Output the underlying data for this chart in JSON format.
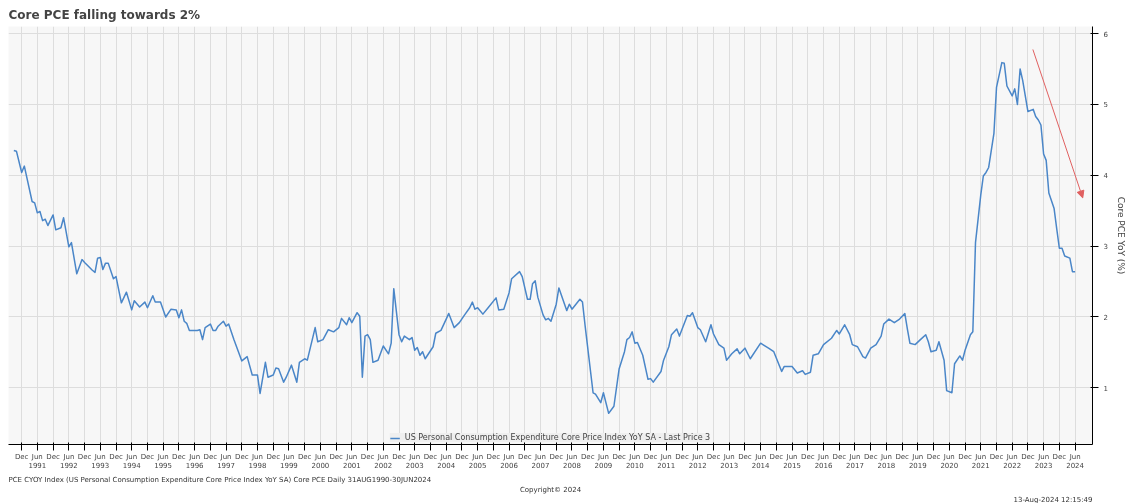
{
  "chart_data": {
    "type": "line",
    "title": "Core PCE falling towards 2%",
    "ylabel": "Core PCE YoY (%)",
    "xlim": [
      "1990-07-01",
      "2024-12-20"
    ],
    "ylim": [
      0.2,
      6.1
    ],
    "yticks": [
      1,
      2,
      3,
      4,
      5,
      6
    ],
    "xticks": [
      {
        "value": "1990-12",
        "label": "Dec"
      },
      {
        "value": "1991-06",
        "label": "Jun\n1991"
      },
      {
        "value": "1991-12",
        "label": "Dec"
      },
      {
        "value": "1992-06",
        "label": "Jun\n1992"
      },
      {
        "value": "1992-12",
        "label": "Dec"
      },
      {
        "value": "1993-06",
        "label": "Jun\n1993"
      },
      {
        "value": "1993-12",
        "label": "Dec"
      },
      {
        "value": "1994-06",
        "label": "Jun\n1994"
      },
      {
        "value": "1994-12",
        "label": "Dec"
      },
      {
        "value": "1995-06",
        "label": "Jun\n1995"
      },
      {
        "value": "1995-12",
        "label": "Dec"
      },
      {
        "value": "1996-06",
        "label": "Jun\n1996"
      },
      {
        "value": "1996-12",
        "label": "Dec"
      },
      {
        "value": "1997-06",
        "label": "Jun\n1997"
      },
      {
        "value": "1997-12",
        "label": "Dec"
      },
      {
        "value": "1998-06",
        "label": "Jun\n1998"
      },
      {
        "value": "1998-12",
        "label": "Dec"
      },
      {
        "value": "1999-06",
        "label": "Jun\n1999"
      },
      {
        "value": "1999-12",
        "label": "Dec"
      },
      {
        "value": "2000-06",
        "label": "Jun\n2000"
      },
      {
        "value": "2000-12",
        "label": "Dec"
      },
      {
        "value": "2001-06",
        "label": "Jun\n2001"
      },
      {
        "value": "2001-12",
        "label": "Dec"
      },
      {
        "value": "2002-06",
        "label": "Jun\n2002"
      },
      {
        "value": "2002-12",
        "label": "Dec"
      },
      {
        "value": "2003-06",
        "label": "Jun\n2003"
      },
      {
        "value": "2003-12",
        "label": "Dec"
      },
      {
        "value": "2004-06",
        "label": "Jun\n2004"
      },
      {
        "value": "2004-12",
        "label": "Dec"
      },
      {
        "value": "2005-06",
        "label": "Jun\n2005"
      },
      {
        "value": "2005-12",
        "label": "Dec"
      },
      {
        "value": "2006-06",
        "label": "Jun\n2006"
      },
      {
        "value": "2006-12",
        "label": "Dec"
      },
      {
        "value": "2007-06",
        "label": "Jun\n2007"
      },
      {
        "value": "2007-12",
        "label": "Dec"
      },
      {
        "value": "2008-06",
        "label": "Jun\n2008"
      },
      {
        "value": "2008-12",
        "label": "Dec"
      },
      {
        "value": "2009-06",
        "label": "Jun\n2009"
      },
      {
        "value": "2009-12",
        "label": "Dec"
      },
      {
        "value": "2010-06",
        "label": "Jun\n2010"
      },
      {
        "value": "2010-12",
        "label": "Dec"
      },
      {
        "value": "2011-06",
        "label": "Jun\n2011"
      },
      {
        "value": "2011-12",
        "label": "Dec"
      },
      {
        "value": "2012-06",
        "label": "Jun\n2012"
      },
      {
        "value": "2012-12",
        "label": "Dec"
      },
      {
        "value": "2013-06",
        "label": "Jun\n2013"
      },
      {
        "value": "2013-12",
        "label": "Dec"
      },
      {
        "value": "2014-06",
        "label": "Jun\n2014"
      },
      {
        "value": "2014-12",
        "label": "Dec"
      },
      {
        "value": "2015-06",
        "label": "Jun\n2015"
      },
      {
        "value": "2015-12",
        "label": "Dec"
      },
      {
        "value": "2016-06",
        "label": "Jun\n2016"
      },
      {
        "value": "2016-12",
        "label": "Dec"
      },
      {
        "value": "2017-06",
        "label": "Jun\n2017"
      },
      {
        "value": "2017-12",
        "label": "Dec"
      },
      {
        "value": "2018-06",
        "label": "Jun\n2018"
      },
      {
        "value": "2018-12",
        "label": "Dec"
      },
      {
        "value": "2019-06",
        "label": "Jun\n2019"
      },
      {
        "value": "2019-12",
        "label": "Dec"
      },
      {
        "value": "2020-06",
        "label": "Jun\n2020"
      },
      {
        "value": "2020-12",
        "label": "Dec"
      },
      {
        "value": "2021-06",
        "label": "Jun\n2021"
      },
      {
        "value": "2021-12",
        "label": "Dec"
      },
      {
        "value": "2022-06",
        "label": "Jun\n2022"
      },
      {
        "value": "2022-12",
        "label": "Dec"
      },
      {
        "value": "2023-06",
        "label": "Jun\n2023"
      },
      {
        "value": "2023-12",
        "label": "Dec"
      },
      {
        "value": "2024-06",
        "label": "Jun\n2024"
      }
    ],
    "grid": true,
    "legend": "bottom",
    "marker": "none",
    "line_style": "solid",
    "annotations": [
      "PCE CYOY Index (US Personal Consumption Expenditure Core Price Index YoY SA) Core PCE  Daily 31AUG1990-30JUN2024",
      "Copyright© 2024",
      "13-Aug-2024 12:15:49"
    ],
    "series": [
      {
        "name": "US Personal Consumption Expenditure Core Price Index YoY SA - Last Price 3",
        "color": "#4a86c8",
        "x": [
          "1990-09",
          "1990-10",
          "1990-12",
          "1991-01",
          "1991-04",
          "1991-05",
          "1991-06",
          "1991-07",
          "1991-08",
          "1991-09",
          "1991-10",
          "1991-12",
          "1992-01",
          "1992-03",
          "1992-04",
          "1992-06",
          "1992-07",
          "1992-09",
          "1992-11",
          "1992-12",
          "1993-03",
          "1993-04",
          "1993-05",
          "1993-06",
          "1993-07",
          "1993-08",
          "1993-09",
          "1993-11",
          "1993-12",
          "1994-02",
          "1994-04",
          "1994-06",
          "1994-07",
          "1994-09",
          "1994-11",
          "1994-12",
          "1995-02",
          "1995-03",
          "1995-05",
          "1995-07",
          "1995-09",
          "1995-11",
          "1995-12",
          "1996-01",
          "1996-02",
          "1996-03",
          "1996-04",
          "1996-07",
          "1996-08",
          "1996-09",
          "1996-10",
          "1996-12",
          "1997-01",
          "1997-02",
          "1997-03",
          "1997-05",
          "1997-06",
          "1997-07",
          "1997-09",
          "1997-12",
          "1998-02",
          "1998-04",
          "1998-06",
          "1998-07",
          "1998-09",
          "1998-10",
          "1998-12",
          "1999-01",
          "1999-02",
          "1999-04",
          "1999-05",
          "1999-07",
          "1999-09",
          "1999-10",
          "1999-12",
          "2000-01",
          "2000-04",
          "2000-05",
          "2000-07",
          "2000-09",
          "2000-11",
          "2001-01",
          "2001-02",
          "2001-04",
          "2001-05",
          "2001-06",
          "2001-08",
          "2001-09",
          "2001-10",
          "2001-11",
          "2001-12",
          "2002-01",
          "2002-02",
          "2002-04",
          "2002-06",
          "2002-08",
          "2002-09",
          "2002-10",
          "2002-12",
          "2003-01",
          "2003-02",
          "2003-04",
          "2003-05",
          "2003-06",
          "2003-07",
          "2003-08",
          "2003-09",
          "2003-10",
          "2004-01",
          "2004-02",
          "2004-04",
          "2004-06",
          "2004-07",
          "2004-09",
          "2004-11",
          "2005-01",
          "2005-03",
          "2005-04",
          "2005-05",
          "2005-06",
          "2005-08",
          "2005-10",
          "2006-01",
          "2006-02",
          "2006-04",
          "2006-06",
          "2006-07",
          "2006-10",
          "2006-11",
          "2007-01",
          "2007-02",
          "2007-03",
          "2007-04",
          "2007-05",
          "2007-07",
          "2007-08",
          "2007-09",
          "2007-10",
          "2007-12",
          "2008-01",
          "2008-04",
          "2008-05",
          "2008-06",
          "2008-09",
          "2008-10",
          "2008-11",
          "2009-02",
          "2009-03",
          "2009-05",
          "2009-06",
          "2009-08",
          "2009-10",
          "2009-12",
          "2010-02",
          "2010-03",
          "2010-04",
          "2010-05",
          "2010-06",
          "2010-07",
          "2010-09",
          "2010-11",
          "2010-12",
          "2011-01",
          "2011-04",
          "2011-05",
          "2011-07",
          "2011-08",
          "2011-10",
          "2011-11",
          "2012-02",
          "2012-03",
          "2012-04",
          "2012-06",
          "2012-07",
          "2012-09",
          "2012-11",
          "2012-12",
          "2013-02",
          "2013-04",
          "2013-05",
          "2013-07",
          "2013-09",
          "2013-10",
          "2013-12",
          "2014-02",
          "2014-06",
          "2014-09",
          "2014-11",
          "2015-02",
          "2015-03",
          "2015-06",
          "2015-08",
          "2015-10",
          "2015-11",
          "2016-01",
          "2016-02",
          "2016-04",
          "2016-06",
          "2016-09",
          "2016-11",
          "2016-12",
          "2017-02",
          "2017-04",
          "2017-05",
          "2017-07",
          "2017-09",
          "2017-10",
          "2017-12",
          "2018-02",
          "2018-04",
          "2018-05",
          "2018-07",
          "2018-09",
          "2018-11",
          "2019-01",
          "2019-02",
          "2019-03",
          "2019-05",
          "2019-07",
          "2019-09",
          "2019-10",
          "2019-11",
          "2020-01",
          "2020-02",
          "2020-04",
          "2020-05",
          "2020-07",
          "2020-08",
          "2020-10",
          "2020-11",
          "2020-12",
          "2021-02",
          "2021-03",
          "2021-04",
          "2021-06",
          "2021-07",
          "2021-08",
          "2021-09",
          "2021-11",
          "2021-12",
          "2022-02",
          "2022-03",
          "2022-04",
          "2022-06",
          "2022-07",
          "2022-08",
          "2022-09",
          "2022-10",
          "2022-12",
          "2023-02",
          "2023-03",
          "2023-04",
          "2023-05",
          "2023-06",
          "2023-07",
          "2023-08",
          "2023-10",
          "2023-11",
          "2023-12",
          "2024-01",
          "2024-02",
          "2024-04",
          "2024-05",
          "2024-06"
        ],
        "values": [
          4.35,
          4.34,
          4.04,
          4.13,
          3.63,
          3.61,
          3.47,
          3.49,
          3.36,
          3.38,
          3.29,
          3.44,
          3.23,
          3.26,
          3.4,
          2.99,
          3.05,
          2.61,
          2.81,
          2.77,
          2.66,
          2.63,
          2.83,
          2.84,
          2.67,
          2.76,
          2.76,
          2.54,
          2.57,
          2.2,
          2.35,
          2.1,
          2.23,
          2.14,
          2.21,
          2.13,
          2.3,
          2.21,
          2.21,
          2.0,
          2.11,
          2.1,
          1.99,
          2.1,
          1.94,
          1.91,
          1.81,
          1.81,
          1.82,
          1.68,
          1.85,
          1.9,
          1.81,
          1.81,
          1.87,
          1.94,
          1.87,
          1.9,
          1.68,
          1.38,
          1.44,
          1.18,
          1.18,
          0.92,
          1.36,
          1.15,
          1.18,
          1.28,
          1.27,
          1.08,
          1.15,
          1.32,
          1.08,
          1.36,
          1.41,
          1.39,
          1.85,
          1.65,
          1.68,
          1.82,
          1.79,
          1.85,
          1.98,
          1.89,
          1.99,
          1.92,
          2.06,
          2.01,
          1.15,
          1.73,
          1.75,
          1.68,
          1.36,
          1.39,
          1.59,
          1.48,
          1.63,
          2.4,
          1.75,
          1.65,
          1.73,
          1.68,
          1.71,
          1.53,
          1.57,
          1.46,
          1.51,
          1.41,
          1.58,
          1.77,
          1.81,
          1.97,
          2.05,
          1.85,
          1.92,
          2.03,
          2.13,
          2.21,
          2.11,
          2.13,
          2.04,
          2.13,
          2.27,
          2.1,
          2.11,
          2.34,
          2.54,
          2.64,
          2.57,
          2.25,
          2.25,
          2.47,
          2.51,
          2.28,
          2.03,
          1.96,
          1.98,
          1.94,
          2.18,
          2.41,
          2.09,
          2.18,
          2.11,
          2.25,
          2.21,
          1.87,
          0.93,
          0.91,
          0.79,
          0.93,
          0.64,
          0.74,
          1.27,
          1.51,
          1.68,
          1.71,
          1.79,
          1.63,
          1.64,
          1.46,
          1.12,
          1.13,
          1.08,
          1.23,
          1.39,
          1.58,
          1.75,
          1.83,
          1.73,
          2.02,
          2.01,
          2.06,
          1.85,
          1.82,
          1.65,
          1.89,
          1.76,
          1.61,
          1.56,
          1.39,
          1.48,
          1.55,
          1.48,
          1.56,
          1.41,
          1.63,
          1.56,
          1.51,
          1.23,
          1.3,
          1.3,
          1.21,
          1.24,
          1.19,
          1.22,
          1.46,
          1.48,
          1.61,
          1.7,
          1.81,
          1.76,
          1.89,
          1.75,
          1.61,
          1.58,
          1.44,
          1.42,
          1.56,
          1.61,
          1.73,
          1.9,
          1.97,
          1.92,
          1.97,
          2.05,
          1.82,
          1.63,
          1.61,
          1.68,
          1.75,
          1.65,
          1.51,
          1.53,
          1.65,
          1.39,
          0.96,
          0.93,
          1.34,
          1.45,
          1.39,
          1.53,
          1.75,
          1.79,
          3.05,
          3.72,
          3.99,
          4.04,
          4.11,
          4.59,
          5.24,
          5.59,
          5.58,
          5.26,
          5.12,
          5.22,
          5.0,
          5.5,
          5.34,
          4.9,
          4.93,
          4.83,
          4.78,
          4.71,
          4.3,
          4.21,
          3.75,
          3.53,
          3.24,
          2.97,
          2.97,
          2.86,
          2.83,
          2.64,
          2.64
        ]
      }
    ]
  }
}
